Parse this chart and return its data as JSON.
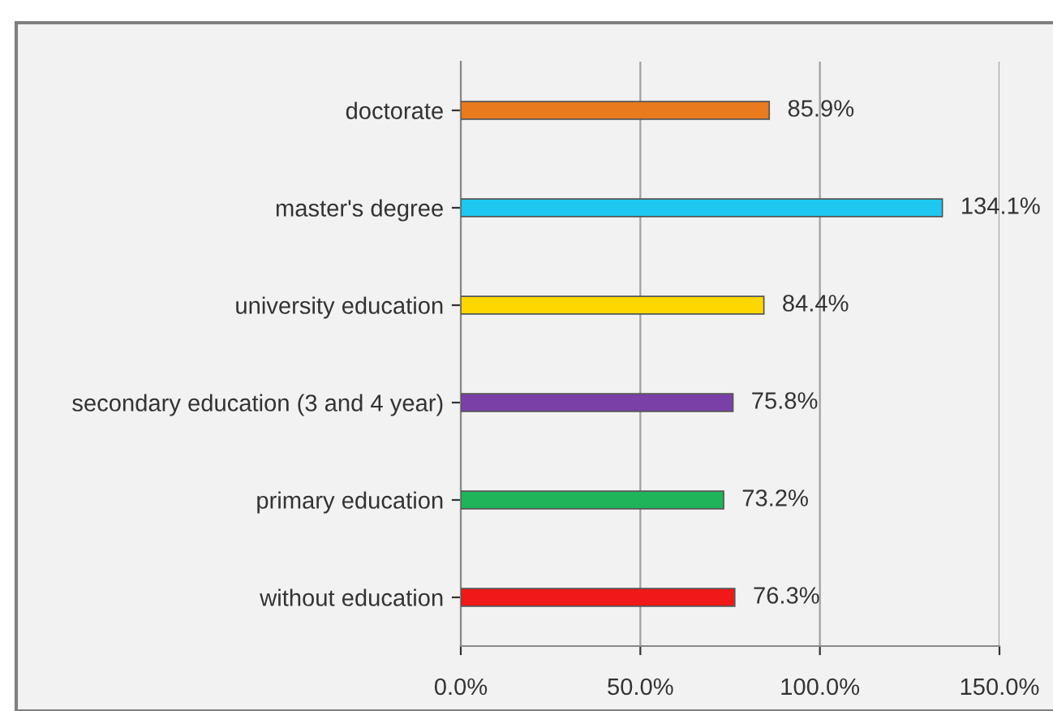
{
  "chart_data": {
    "type": "bar",
    "orientation": "horizontal",
    "categories": [
      "doctorate",
      "master's degree",
      "university education",
      "secondary education (3 and 4 year)",
      "primary education",
      "without education"
    ],
    "values": [
      85.9,
      134.1,
      84.4,
      75.8,
      73.2,
      76.3
    ],
    "colors": [
      "#e97a1e",
      "#1ec8f0",
      "#ffd700",
      "#7b3fa8",
      "#1fb45a",
      "#f01818"
    ],
    "value_labels": [
      "85.9%",
      "134.1%",
      "84.4%",
      "75.8%",
      "73.2%",
      "76.3%"
    ],
    "xlim": [
      0,
      150
    ],
    "xticks": [
      {
        "value": 0,
        "label": "0.0%"
      },
      {
        "value": 50,
        "label": "50.0%"
      },
      {
        "value": 100,
        "label": "100.0%"
      },
      {
        "value": 150,
        "label": "150.0%"
      }
    ],
    "grid": "x",
    "legend": false
  }
}
